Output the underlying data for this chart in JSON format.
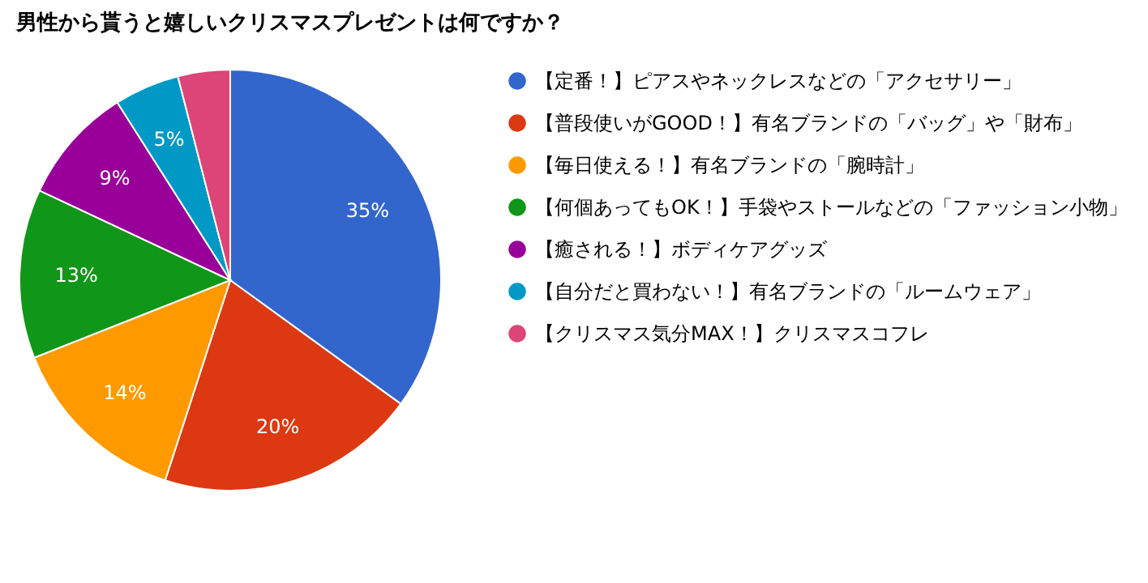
{
  "chart_data": {
    "type": "pie",
    "title": "男性から貰うと嬉しいクリスマスプレゼントは何ですか？",
    "categories": [
      "【定番！】ピアスやネックレスなどの「アクセサリー」",
      "【普段使いがGOOD！】有名ブランドの「バッグ」や「財布」",
      "【毎日使える！】有名ブランドの「腕時計」",
      "【何個あってもOK！】手袋やストールなどの「ファッション小物」",
      "【癒される！】ボディケアグッズ",
      "【自分だと買わない！】有名ブランドの「ルームウェア」",
      "【クリスマス気分MAX！】クリスマスコフレ"
    ],
    "values": [
      35,
      20,
      14,
      13,
      9,
      5,
      4
    ],
    "value_labels": [
      "35%",
      "20%",
      "14%",
      "13%",
      "9%",
      "5%",
      null
    ],
    "colors": [
      "#3366cc",
      "#dc3912",
      "#ff9900",
      "#109618",
      "#990099",
      "#0099c6",
      "#dd4477"
    ],
    "legend": "right"
  }
}
